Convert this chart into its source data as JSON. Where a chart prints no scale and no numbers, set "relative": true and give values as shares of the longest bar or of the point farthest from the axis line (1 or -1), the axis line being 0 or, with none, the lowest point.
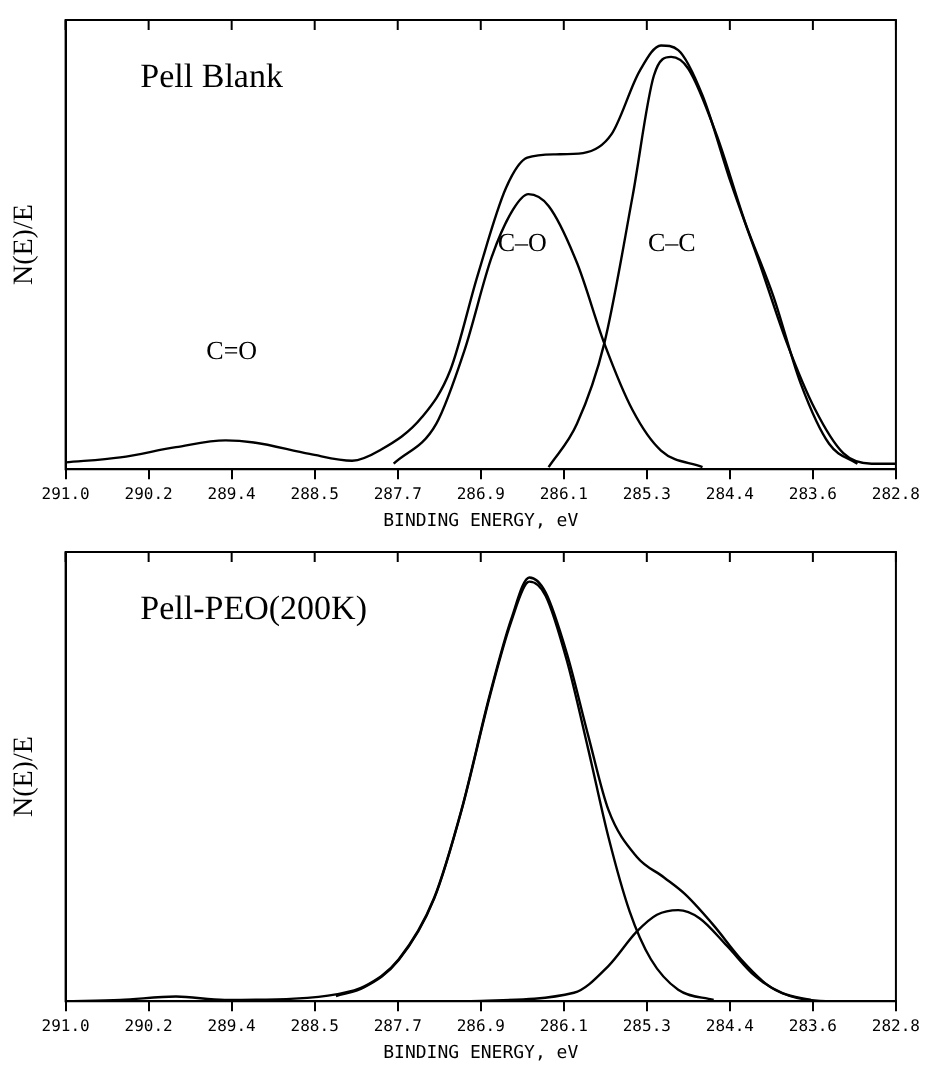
{
  "chart_data": [
    {
      "type": "line",
      "relative": true,
      "xlabel": "BINDING ENERGY, eV",
      "ylabel": "N(E)/E",
      "xlim": [
        291.0,
        282.8
      ],
      "xticks": [
        {
          "value": 291.0,
          "label": "291.0"
        },
        {
          "value": 290.18,
          "label": "290.2"
        },
        {
          "value": 289.36,
          "label": "289.4"
        },
        {
          "value": 288.54,
          "label": "288.5"
        },
        {
          "value": 287.72,
          "label": "287.7"
        },
        {
          "value": 286.9,
          "label": "286.9"
        },
        {
          "value": 286.08,
          "label": "286.1"
        },
        {
          "value": 285.26,
          "label": "285.3"
        },
        {
          "value": 284.44,
          "label": "284.4"
        },
        {
          "value": 283.62,
          "label": "283.6"
        },
        {
          "value": 282.8,
          "label": "282.8"
        }
      ],
      "tick_labels": "x",
      "grid": false,
      "legend": false,
      "marker": "none",
      "line_style": "solid",
      "annotations": [
        "Pell Blank",
        "C=O",
        "C–O",
        "C–C"
      ],
      "series": [
        {
          "color": "#000000",
          "x": [
            291.0,
            290.46,
            289.91,
            289.42,
            289.14,
            288.59,
            288.17,
            287.9,
            287.48,
            287.2,
            286.93,
            286.65,
            286.44,
            286.16,
            285.89,
            285.61,
            285.33,
            285.12,
            284.95,
            284.71,
            284.43,
            284.15,
            283.88,
            283.6,
            283.32,
            283.04,
            282.8
          ],
          "values": [
            0.016,
            0.028,
            0.052,
            0.068,
            0.063,
            0.036,
            0.02,
            0.044,
            0.123,
            0.234,
            0.458,
            0.664,
            0.735,
            0.743,
            0.746,
            0.79,
            0.94,
            1.0,
            0.989,
            0.882,
            0.676,
            0.488,
            0.3,
            0.142,
            0.038,
            0.013,
            0.013
          ]
        },
        {
          "color": "#000000",
          "x": [
            287.76,
            287.34,
            287.06,
            286.79,
            286.58,
            286.43,
            286.23,
            285.95,
            285.68,
            285.4,
            285.12,
            284.71
          ],
          "values": [
            0.013,
            0.107,
            0.281,
            0.502,
            0.613,
            0.649,
            0.621,
            0.487,
            0.297,
            0.139,
            0.044,
            0.005
          ]
        },
        {
          "color": "#000000",
          "x": [
            286.23,
            285.95,
            285.68,
            285.4,
            285.19,
            285.02,
            284.85,
            284.57,
            284.29,
            284.01,
            283.74,
            283.46,
            283.18
          ],
          "values": [
            0.005,
            0.107,
            0.297,
            0.645,
            0.929,
            0.973,
            0.945,
            0.788,
            0.583,
            0.408,
            0.202,
            0.06,
            0.013
          ]
        }
      ]
    },
    {
      "type": "line",
      "relative": true,
      "xlabel": "BINDING ENERGY, eV",
      "ylabel": "N(E)/E",
      "xlim": [
        291.0,
        282.8
      ],
      "xticks": [
        {
          "value": 291.0,
          "label": "291.0"
        },
        {
          "value": 290.18,
          "label": "290.2"
        },
        {
          "value": 289.36,
          "label": "289.4"
        },
        {
          "value": 288.54,
          "label": "288.5"
        },
        {
          "value": 287.72,
          "label": "287.7"
        },
        {
          "value": 286.9,
          "label": "286.9"
        },
        {
          "value": 286.08,
          "label": "286.1"
        },
        {
          "value": 285.26,
          "label": "285.3"
        },
        {
          "value": 284.44,
          "label": "284.4"
        },
        {
          "value": 283.62,
          "label": "283.6"
        },
        {
          "value": 282.8,
          "label": "282.8"
        }
      ],
      "tick_labels": "x",
      "grid": false,
      "legend": false,
      "marker": "none",
      "line_style": "solid",
      "annotations": [
        "Pell-PEO(200K)"
      ],
      "series": [
        {
          "color": "#000000",
          "x": [
            291.0,
            290.46,
            289.91,
            289.43,
            288.74,
            288.33,
            288.05,
            287.71,
            287.36,
            287.09,
            286.81,
            286.6,
            286.42,
            286.26,
            286.05,
            285.84,
            285.64,
            285.36,
            285.09,
            284.88,
            284.6,
            284.33,
            284.05,
            283.78,
            283.36,
            282.8
          ],
          "values": [
            0,
            0.003,
            0.011,
            0.003,
            0.006,
            0.016,
            0.035,
            0.099,
            0.244,
            0.452,
            0.724,
            0.901,
            1.0,
            0.965,
            0.821,
            0.628,
            0.452,
            0.341,
            0.292,
            0.252,
            0.179,
            0.099,
            0.035,
            0.008,
            0,
            0
          ]
        },
        {
          "color": "#000000",
          "x": [
            288.33,
            288.05,
            287.71,
            287.36,
            287.09,
            286.81,
            286.6,
            286.42,
            286.26,
            286.05,
            285.84,
            285.64,
            285.43,
            285.22,
            284.95,
            284.6
          ],
          "values": [
            0.012,
            0.033,
            0.097,
            0.242,
            0.45,
            0.72,
            0.895,
            0.99,
            0.957,
            0.804,
            0.596,
            0.388,
            0.212,
            0.099,
            0.027,
            0.003
          ]
        },
        {
          "color": "#000000",
          "x": [
            287.0,
            285.98,
            285.64,
            285.36,
            285.16,
            284.95,
            284.74,
            284.47,
            284.19,
            283.92,
            283.64
          ],
          "values": [
            0,
            0.02,
            0.083,
            0.164,
            0.204,
            0.215,
            0.196,
            0.131,
            0.059,
            0.019,
            0.003
          ]
        }
      ]
    }
  ]
}
